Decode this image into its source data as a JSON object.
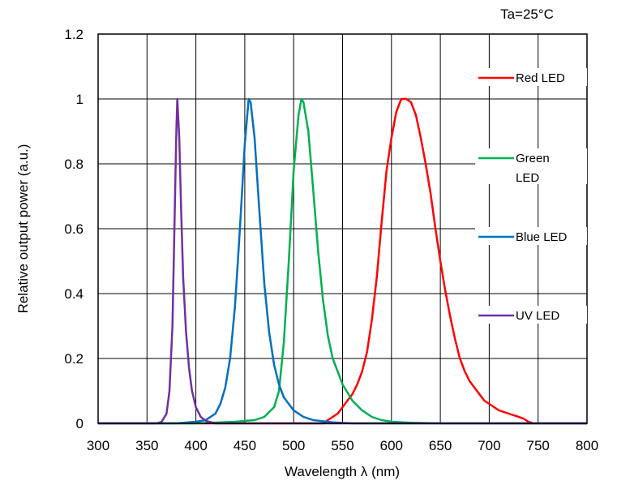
{
  "chart_data": {
    "type": "line",
    "annotation": "Ta=25°C",
    "xlabel": "Wavelength λ (nm)",
    "ylabel": "Relative output power (a.u.)",
    "xlim": [
      300,
      800
    ],
    "ylim": [
      0,
      1.2
    ],
    "x_ticks": [
      300,
      350,
      400,
      450,
      500,
      550,
      600,
      650,
      700,
      750,
      800
    ],
    "y_ticks": [
      0,
      0.2,
      0.4,
      0.6,
      0.8,
      1,
      1.2
    ],
    "y_tick_labels": [
      "0",
      "0.2",
      "0.4",
      "0.6",
      "0.8",
      "1",
      "1.2"
    ],
    "grid": true,
    "legend_position": "right",
    "series": [
      {
        "name": "Red LED",
        "legend_lines": [
          "Red LED"
        ],
        "color": "#ff0000",
        "x": [
          300,
          530,
          535,
          540,
          545,
          550,
          555,
          560,
          565,
          570,
          575,
          580,
          585,
          590,
          595,
          600,
          605,
          610,
          615,
          620,
          625,
          630,
          635,
          640,
          645,
          650,
          655,
          660,
          665,
          670,
          675,
          680,
          685,
          690,
          695,
          700,
          705,
          710,
          715,
          720,
          725,
          730,
          735,
          740,
          745,
          800
        ],
        "y": [
          0,
          0,
          0.01,
          0.02,
          0.03,
          0.05,
          0.07,
          0.09,
          0.12,
          0.16,
          0.22,
          0.32,
          0.45,
          0.62,
          0.78,
          0.88,
          0.96,
          1.0,
          1.0,
          0.99,
          0.95,
          0.88,
          0.8,
          0.71,
          0.6,
          0.5,
          0.41,
          0.33,
          0.26,
          0.2,
          0.16,
          0.13,
          0.11,
          0.09,
          0.07,
          0.06,
          0.05,
          0.04,
          0.035,
          0.03,
          0.025,
          0.02,
          0.015,
          0.005,
          0,
          0
        ]
      },
      {
        "name": "Green LED",
        "legend_lines": [
          "Green",
          "LED"
        ],
        "color": "#00b050",
        "x": [
          300,
          400,
          440,
          460,
          470,
          480,
          485,
          490,
          495,
          500,
          505,
          508,
          510,
          515,
          520,
          525,
          530,
          535,
          540,
          545,
          550,
          560,
          570,
          580,
          590,
          600,
          620,
          650,
          800
        ],
        "y": [
          0,
          0,
          0.005,
          0.01,
          0.02,
          0.05,
          0.1,
          0.25,
          0.5,
          0.78,
          0.95,
          1.0,
          0.99,
          0.9,
          0.72,
          0.53,
          0.38,
          0.27,
          0.2,
          0.16,
          0.12,
          0.07,
          0.04,
          0.02,
          0.01,
          0.005,
          0.002,
          0,
          0
        ]
      },
      {
        "name": "Blue LED",
        "legend_lines": [
          "Blue LED"
        ],
        "color": "#0070c0",
        "x": [
          300,
          380,
          400,
          410,
          420,
          425,
          430,
          435,
          440,
          445,
          450,
          454,
          456,
          460,
          465,
          470,
          475,
          480,
          485,
          490,
          500,
          510,
          520,
          540,
          560,
          800
        ],
        "y": [
          0,
          0,
          0.005,
          0.01,
          0.03,
          0.06,
          0.11,
          0.2,
          0.36,
          0.6,
          0.86,
          1.0,
          0.99,
          0.88,
          0.65,
          0.43,
          0.28,
          0.18,
          0.12,
          0.08,
          0.04,
          0.02,
          0.01,
          0.003,
          0,
          0
        ]
      },
      {
        "name": "UV  LED",
        "legend_lines": [
          "UV  LED"
        ],
        "color": "#7030a0",
        "x": [
          300,
          360,
          365,
          370,
          373,
          376,
          378,
          380,
          381,
          383,
          385,
          387,
          390,
          393,
          396,
          400,
          405,
          410,
          420,
          800
        ],
        "y": [
          0,
          0,
          0.005,
          0.03,
          0.1,
          0.3,
          0.6,
          0.9,
          1.0,
          0.88,
          0.65,
          0.45,
          0.28,
          0.17,
          0.1,
          0.05,
          0.02,
          0.008,
          0,
          0
        ]
      }
    ]
  }
}
